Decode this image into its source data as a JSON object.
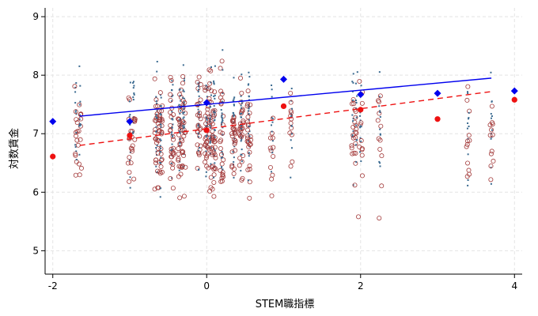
{
  "chart_data": {
    "type": "scatter",
    "xlabel": "STEM職指標",
    "ylabel": "対数賃金",
    "xlim": [
      -2.1,
      4.1
    ],
    "ylim": [
      4.6,
      9.15
    ],
    "xticks": [
      -2,
      0,
      2,
      4
    ],
    "xtick_labels": [
      "-2",
      "0",
      "2",
      "4"
    ],
    "yticks": [
      5,
      6,
      7,
      8,
      9
    ],
    "ytick_labels": [
      "5",
      "6",
      "7",
      "8",
      "9"
    ],
    "grid": true,
    "colors": {
      "blue": "#0000ee",
      "red": "#ee1111",
      "blue_dot": "#3a6a90",
      "red_ring": "#a33a3a"
    },
    "scatter_columns": [
      -1.7,
      -1.65,
      -1.0,
      -0.95,
      -0.65,
      -0.6,
      -0.45,
      -0.35,
      -0.3,
      -0.1,
      0.0,
      0.05,
      0.1,
      0.2,
      0.35,
      0.45,
      0.55,
      0.85,
      1.1,
      1.9,
      1.95,
      2.0,
      2.25,
      3.4,
      3.7
    ],
    "blue_fit_line": {
      "x": [
        -1.65,
        3.7
      ],
      "y": [
        7.3,
        7.95
      ]
    },
    "red_fit_line": {
      "x": [
        -1.65,
        3.7
      ],
      "y": [
        6.8,
        7.72
      ]
    },
    "blue_binned_means": {
      "x": [
        -2,
        -1,
        0,
        1,
        2,
        3,
        4
      ],
      "y": [
        7.21,
        7.21,
        7.53,
        7.93,
        7.67,
        7.69,
        7.73
      ]
    },
    "red_binned_means": {
      "x": [
        -2,
        -1,
        0,
        1,
        2,
        3,
        4
      ],
      "y": [
        6.61,
        6.97,
        7.06,
        7.47,
        7.41,
        7.25,
        7.58
      ]
    }
  }
}
